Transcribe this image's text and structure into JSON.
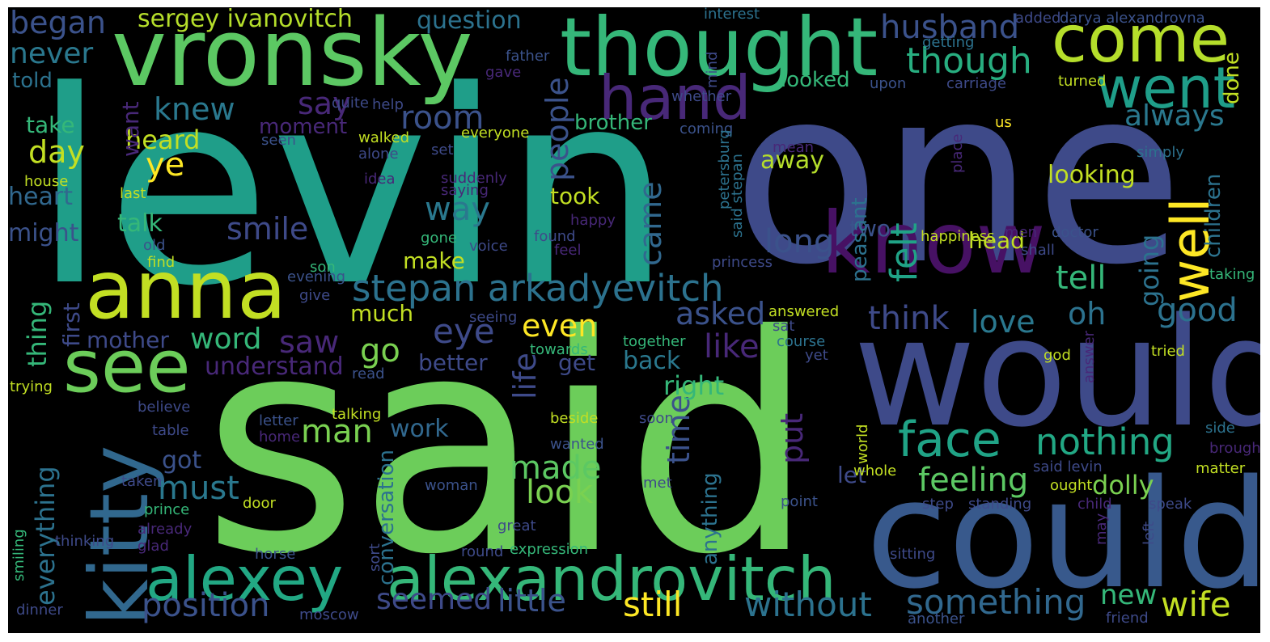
{
  "background": "#000000",
  "palette": [
    "#440154",
    "#482878",
    "#3e4a89",
    "#31688e",
    "#26828e",
    "#1f9e89",
    "#35b779",
    "#6ece58",
    "#b5de2b",
    "#fde725"
  ],
  "words": [
    {
      "text": "said",
      "color": "#6ccd5a"
    },
    {
      "text": "levin",
      "color": "#1f9e89"
    },
    {
      "text": "one",
      "color": "#3e4a89"
    },
    {
      "text": "would",
      "color": "#3e4a89"
    },
    {
      "text": "could",
      "color": "#38598c"
    },
    {
      "text": "vronsky",
      "color": "#5cc863"
    },
    {
      "text": "thought",
      "color": "#35b779"
    },
    {
      "text": "anna",
      "color": "#c2df23"
    },
    {
      "text": "know",
      "color": "#471164"
    },
    {
      "text": "see",
      "color": "#6ccd5a"
    },
    {
      "text": "kitty",
      "color": "#31688e"
    },
    {
      "text": "come",
      "color": "#b5de2b"
    },
    {
      "text": "alexandrovitch",
      "color": "#35b779"
    },
    {
      "text": "alexey",
      "color": "#22a884"
    },
    {
      "text": "hand",
      "color": "#482878"
    },
    {
      "text": "went",
      "color": "#1f9e89"
    },
    {
      "text": "well",
      "color": "#fde725"
    },
    {
      "text": "face",
      "color": "#20a386"
    },
    {
      "text": "stepan arkadyevitch",
      "color": "#2c728e"
    },
    {
      "text": "nothing",
      "color": "#22a884"
    },
    {
      "text": "something",
      "color": "#31688e"
    },
    {
      "text": "still",
      "color": "#fde725"
    },
    {
      "text": "without",
      "color": "#2c728e"
    },
    {
      "text": "wife",
      "color": "#c2df23"
    },
    {
      "text": "position",
      "color": "#3b528b"
    },
    {
      "text": "husband",
      "color": "#3b528b"
    },
    {
      "text": "though",
      "color": "#28ae80"
    },
    {
      "text": "felt",
      "color": "#20a386"
    },
    {
      "text": "eye",
      "color": "#3e4a89"
    },
    {
      "text": "go",
      "color": "#7ad151"
    },
    {
      "text": "smile",
      "color": "#3e4a89"
    },
    {
      "text": "say",
      "color": "#482878"
    },
    {
      "text": "look",
      "color": "#7ad151"
    },
    {
      "text": "little",
      "color": "#3b528b"
    },
    {
      "text": "seemed",
      "color": "#3e4a89"
    },
    {
      "text": "life",
      "color": "#3e4a89"
    },
    {
      "text": "people",
      "color": "#3b528b"
    },
    {
      "text": "feeling",
      "color": "#5cc863"
    },
    {
      "text": "made",
      "color": "#5cc863"
    },
    {
      "text": "man",
      "color": "#7ad151"
    },
    {
      "text": "must",
      "color": "#2a788e"
    },
    {
      "text": "time",
      "color": "#3b528b"
    },
    {
      "text": "put",
      "color": "#482878"
    },
    {
      "text": "came",
      "color": "#31688e"
    },
    {
      "text": "long",
      "color": "#3b528b"
    },
    {
      "text": "like",
      "color": "#482878"
    },
    {
      "text": "even",
      "color": "#fde725"
    },
    {
      "text": "saw",
      "color": "#482878"
    },
    {
      "text": "word",
      "color": "#35b779"
    },
    {
      "text": "asked",
      "color": "#3b528b"
    },
    {
      "text": "think",
      "color": "#3e4a89"
    },
    {
      "text": "love",
      "color": "#2a788e"
    },
    {
      "text": "good",
      "color": "#2c728e"
    },
    {
      "text": "tell",
      "color": "#35b779"
    },
    {
      "text": "way",
      "color": "#2a788e"
    },
    {
      "text": "room",
      "color": "#3b528b"
    },
    {
      "text": "knew",
      "color": "#2a788e"
    },
    {
      "text": "day",
      "color": "#c2df23"
    },
    {
      "text": "ye",
      "color": "#fde725"
    },
    {
      "text": "began",
      "color": "#3b528b"
    },
    {
      "text": "never",
      "color": "#2a788e"
    },
    {
      "text": "sergey ivanovitch",
      "color": "#b5de2b"
    },
    {
      "text": "question",
      "color": "#2c728e"
    },
    {
      "text": "dolly",
      "color": "#7ad151"
    },
    {
      "text": "new",
      "color": "#35b779"
    },
    {
      "text": "always",
      "color": "#2a788e"
    },
    {
      "text": "going",
      "color": "#2c728e"
    },
    {
      "text": "oh",
      "color": "#2c728e"
    },
    {
      "text": "everything",
      "color": "#2c728e"
    },
    {
      "text": "thing",
      "color": "#35b779"
    },
    {
      "text": "conversation",
      "color": "#2c728e"
    },
    {
      "text": "anything",
      "color": "#2c728e"
    },
    {
      "text": "children",
      "color": "#2c728e"
    },
    {
      "text": "looking",
      "color": "#c2df23"
    },
    {
      "text": "work",
      "color": "#31688e"
    },
    {
      "text": "understand",
      "color": "#482878"
    },
    {
      "text": "better",
      "color": "#3e4a89"
    },
    {
      "text": "get",
      "color": "#3e4a89"
    },
    {
      "text": "back",
      "color": "#2a788e"
    },
    {
      "text": "right",
      "color": "#35b779"
    },
    {
      "text": "mother",
      "color": "#3e4a89"
    },
    {
      "text": "heard",
      "color": "#c2df23"
    },
    {
      "text": "take",
      "color": "#35b779"
    },
    {
      "text": "heart",
      "color": "#31688e"
    },
    {
      "text": "might",
      "color": "#3b528b"
    },
    {
      "text": "talk",
      "color": "#35b779"
    },
    {
      "text": "told",
      "color": "#2c728e"
    },
    {
      "text": "moment",
      "color": "#482878"
    },
    {
      "text": "brother",
      "color": "#35b779"
    },
    {
      "text": "looked",
      "color": "#35b779"
    },
    {
      "text": "away",
      "color": "#b5de2b"
    },
    {
      "text": "took",
      "color": "#c2df23"
    },
    {
      "text": "make",
      "color": "#c2df23"
    },
    {
      "text": "much",
      "color": "#c2df23"
    },
    {
      "text": "want",
      "color": "#482878"
    },
    {
      "text": "first",
      "color": "#3e4a89"
    },
    {
      "text": "let",
      "color": "#3e4a89"
    },
    {
      "text": "got",
      "color": "#3b528b"
    },
    {
      "text": "done",
      "color": "#c2df23"
    },
    {
      "text": "two",
      "color": "#3b528b"
    },
    {
      "text": "head",
      "color": "#c2df23"
    },
    {
      "text": "peasant",
      "color": "#2c728e"
    },
    {
      "text": "interest",
      "color": "#2c728e"
    },
    {
      "text": "added",
      "color": "#3e4a89"
    },
    {
      "text": "darya alexandrovna",
      "color": "#3b528b"
    },
    {
      "text": "mind",
      "color": "#3e4a89"
    },
    {
      "text": "getting",
      "color": "#2c728e"
    },
    {
      "text": "father",
      "color": "#3b528b"
    },
    {
      "text": "gave",
      "color": "#482878"
    },
    {
      "text": "whether",
      "color": "#3e4a89"
    },
    {
      "text": "upon",
      "color": "#3b528b"
    },
    {
      "text": "carriage",
      "color": "#3e4a89"
    },
    {
      "text": "turned",
      "color": "#c2df23"
    },
    {
      "text": "quite",
      "color": "#3e4a89"
    },
    {
      "text": "help",
      "color": "#3e4a89"
    },
    {
      "text": "coming",
      "color": "#3b528b"
    },
    {
      "text": "us",
      "color": "#fde725"
    },
    {
      "text": "everyone",
      "color": "#c2df23"
    },
    {
      "text": "seen",
      "color": "#3b528b"
    },
    {
      "text": "walked",
      "color": "#c2df23"
    },
    {
      "text": "alone",
      "color": "#3e4a89"
    },
    {
      "text": "set",
      "color": "#3e4a89"
    },
    {
      "text": "mean",
      "color": "#482878"
    },
    {
      "text": "simply",
      "color": "#2c728e"
    },
    {
      "text": "house",
      "color": "#c2df23"
    },
    {
      "text": "idea",
      "color": "#482878"
    },
    {
      "text": "suddenly",
      "color": "#482878"
    },
    {
      "text": "saying",
      "color": "#482878"
    },
    {
      "text": "place",
      "color": "#482878"
    },
    {
      "text": "last",
      "color": "#c2df23"
    },
    {
      "text": "petersburg",
      "color": "#2c728e"
    },
    {
      "text": "said stepan",
      "color": "#2c728e"
    },
    {
      "text": "happy",
      "color": "#482878"
    },
    {
      "text": "men",
      "color": "#482878"
    },
    {
      "text": "old",
      "color": "#3b528b"
    },
    {
      "text": "found",
      "color": "#3e4a89"
    },
    {
      "text": "happiness",
      "color": "#c2df23"
    },
    {
      "text": "doctor",
      "color": "#3b528b"
    },
    {
      "text": "gone",
      "color": "#35b779"
    },
    {
      "text": "voice",
      "color": "#3e4a89"
    },
    {
      "text": "feel",
      "color": "#482878"
    },
    {
      "text": "find",
      "color": "#c2df23"
    },
    {
      "text": "princess",
      "color": "#3e4a89"
    },
    {
      "text": "shall",
      "color": "#3e4a89"
    },
    {
      "text": "son",
      "color": "#35b779"
    },
    {
      "text": "taking",
      "color": "#35b779"
    },
    {
      "text": "evening",
      "color": "#3b528b"
    },
    {
      "text": "give",
      "color": "#3e4a89"
    },
    {
      "text": "seeing",
      "color": "#3e4a89"
    },
    {
      "text": "answered",
      "color": "#c2df23"
    },
    {
      "text": "sat",
      "color": "#3e4a89"
    },
    {
      "text": "course",
      "color": "#2c728e"
    },
    {
      "text": "together",
      "color": "#35b779"
    },
    {
      "text": "towards",
      "color": "#35b779"
    },
    {
      "text": "yet",
      "color": "#3e4a89"
    },
    {
      "text": "god",
      "color": "#c2df23"
    },
    {
      "text": "tried",
      "color": "#c2df23"
    },
    {
      "text": "answer",
      "color": "#482878"
    },
    {
      "text": "trying",
      "color": "#c2df23"
    },
    {
      "text": "read",
      "color": "#3b528b"
    },
    {
      "text": "believe",
      "color": "#3e4a89"
    },
    {
      "text": "talking",
      "color": "#c2df23"
    },
    {
      "text": "letter",
      "color": "#3b528b"
    },
    {
      "text": "table",
      "color": "#3e4a89"
    },
    {
      "text": "home",
      "color": "#482878"
    },
    {
      "text": "beside",
      "color": "#c2df23"
    },
    {
      "text": "soon",
      "color": "#3e4a89"
    },
    {
      "text": "world",
      "color": "#c2df23"
    },
    {
      "text": "side",
      "color": "#2c728e"
    },
    {
      "text": "wanted",
      "color": "#3b528b"
    },
    {
      "text": "brought",
      "color": "#482878"
    },
    {
      "text": "whole",
      "color": "#c2df23"
    },
    {
      "text": "said levin",
      "color": "#3e4a89"
    },
    {
      "text": "matter",
      "color": "#c2df23"
    },
    {
      "text": "taken",
      "color": "#3e4a89"
    },
    {
      "text": "woman",
      "color": "#3b528b"
    },
    {
      "text": "met",
      "color": "#3e4a89"
    },
    {
      "text": "ought",
      "color": "#c2df23"
    },
    {
      "text": "prince",
      "color": "#35b779"
    },
    {
      "text": "door",
      "color": "#c2df23"
    },
    {
      "text": "point",
      "color": "#3b528b"
    },
    {
      "text": "step",
      "color": "#3e4a89"
    },
    {
      "text": "standing",
      "color": "#3e4a89"
    },
    {
      "text": "child",
      "color": "#482878"
    },
    {
      "text": "speak",
      "color": "#3e4a89"
    },
    {
      "text": "already",
      "color": "#482878"
    },
    {
      "text": "great",
      "color": "#3e4a89"
    },
    {
      "text": "may",
      "color": "#482878"
    },
    {
      "text": "left",
      "color": "#3e4a89"
    },
    {
      "text": "smiling",
      "color": "#35b779"
    },
    {
      "text": "thinking",
      "color": "#3e4a89"
    },
    {
      "text": "glad",
      "color": "#482878"
    },
    {
      "text": "horse",
      "color": "#3b528b"
    },
    {
      "text": "round",
      "color": "#3e4a89"
    },
    {
      "text": "expression",
      "color": "#35b779"
    },
    {
      "text": "sitting",
      "color": "#3e4a89"
    },
    {
      "text": "sort",
      "color": "#3e4a89"
    },
    {
      "text": "dinner",
      "color": "#3e4a89"
    },
    {
      "text": "moscow",
      "color": "#3e4a89"
    },
    {
      "text": "another",
      "color": "#3b528b"
    },
    {
      "text": "friend",
      "color": "#3e4a89"
    }
  ]
}
